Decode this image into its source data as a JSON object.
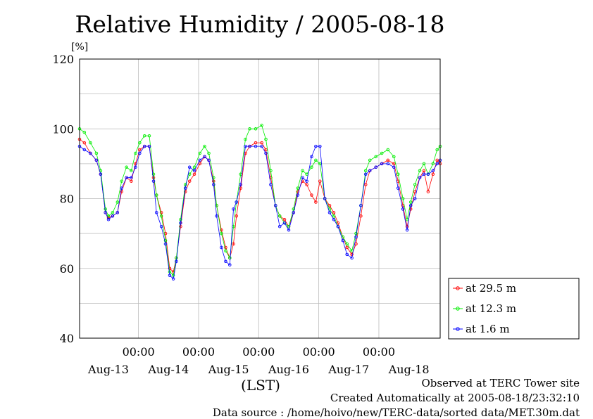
{
  "chart_data": {
    "type": "line",
    "title": "Relative Humidity / 2005-08-18",
    "ylabel": "[%]",
    "xlabel": "(LST)",
    "ylim": [
      40,
      120
    ],
    "yticks": [
      "40",
      "60",
      "80",
      "100",
      "120"
    ],
    "xlim": [
      -0.98,
      5.02
    ],
    "x_unit": "days relative to 2005-08-13 00:00 LST",
    "time_ticks": [
      {
        "x": 0,
        "label": "00:00"
      },
      {
        "x": 1,
        "label": "00:00"
      },
      {
        "x": 2,
        "label": "00:00"
      },
      {
        "x": 3,
        "label": "00:00"
      },
      {
        "x": 4,
        "label": "00:00"
      }
    ],
    "date_labels": [
      {
        "x": -0.5,
        "label": "Aug-13"
      },
      {
        "x": 0.5,
        "label": "Aug-14"
      },
      {
        "x": 1.5,
        "label": "Aug-15"
      },
      {
        "x": 2.5,
        "label": "Aug-16"
      },
      {
        "x": 3.5,
        "label": "Aug-17"
      },
      {
        "x": 4.5,
        "label": "Aug-18"
      }
    ],
    "grid": true,
    "legend_position": "right",
    "series": [
      {
        "name": "at 29.5 m",
        "color": "#ff0000",
        "points": [
          [
            -0.98,
            97
          ],
          [
            -0.9,
            96
          ],
          [
            -0.8,
            93
          ],
          [
            -0.7,
            91
          ],
          [
            -0.63,
            87
          ],
          [
            -0.55,
            76
          ],
          [
            -0.5,
            74.5
          ],
          [
            -0.43,
            75
          ],
          [
            -0.35,
            76
          ],
          [
            -0.28,
            82
          ],
          [
            -0.2,
            86
          ],
          [
            -0.12,
            85
          ],
          [
            -0.05,
            90
          ],
          [
            0.02,
            94
          ],
          [
            0.1,
            95
          ],
          [
            0.18,
            95
          ],
          [
            0.25,
            86
          ],
          [
            0.3,
            81
          ],
          [
            0.38,
            76
          ],
          [
            0.45,
            70
          ],
          [
            0.52,
            60
          ],
          [
            0.58,
            59
          ],
          [
            0.63,
            63
          ],
          [
            0.7,
            72
          ],
          [
            0.78,
            82
          ],
          [
            0.85,
            85
          ],
          [
            0.93,
            87
          ],
          [
            1.02,
            90
          ],
          [
            1.1,
            92
          ],
          [
            1.17,
            91
          ],
          [
            1.25,
            85
          ],
          [
            1.3,
            78
          ],
          [
            1.38,
            71
          ],
          [
            1.45,
            66
          ],
          [
            1.52,
            63
          ],
          [
            1.58,
            67
          ],
          [
            1.63,
            75
          ],
          [
            1.7,
            83
          ],
          [
            1.78,
            93
          ],
          [
            1.85,
            95
          ],
          [
            1.95,
            96
          ],
          [
            2.05,
            96
          ],
          [
            2.12,
            94
          ],
          [
            2.2,
            86
          ],
          [
            2.28,
            78
          ],
          [
            2.35,
            75
          ],
          [
            2.43,
            74
          ],
          [
            2.5,
            72
          ],
          [
            2.58,
            76
          ],
          [
            2.65,
            82
          ],
          [
            2.73,
            85
          ],
          [
            2.8,
            84
          ],
          [
            2.88,
            81
          ],
          [
            2.95,
            79
          ],
          [
            3.02,
            85
          ],
          [
            3.1,
            80
          ],
          [
            3.18,
            78
          ],
          [
            3.25,
            76
          ],
          [
            3.32,
            73
          ],
          [
            3.4,
            69
          ],
          [
            3.47,
            66
          ],
          [
            3.55,
            64
          ],
          [
            3.62,
            67
          ],
          [
            3.7,
            75
          ],
          [
            3.78,
            84
          ],
          [
            3.85,
            88
          ],
          [
            3.95,
            89
          ],
          [
            4.05,
            90
          ],
          [
            4.15,
            91
          ],
          [
            4.25,
            90
          ],
          [
            4.32,
            85
          ],
          [
            4.4,
            78
          ],
          [
            4.47,
            72
          ],
          [
            4.53,
            77
          ],
          [
            4.6,
            82
          ],
          [
            4.68,
            86
          ],
          [
            4.75,
            88
          ],
          [
            4.82,
            82
          ],
          [
            4.9,
            87
          ],
          [
            4.97,
            91
          ],
          [
            5.02,
            90
          ]
        ]
      },
      {
        "name": "at 12.3 m",
        "color": "#00ee00",
        "points": [
          [
            -0.98,
            100
          ],
          [
            -0.9,
            99
          ],
          [
            -0.8,
            96
          ],
          [
            -0.7,
            93
          ],
          [
            -0.63,
            88
          ],
          [
            -0.55,
            77
          ],
          [
            -0.5,
            75
          ],
          [
            -0.43,
            76
          ],
          [
            -0.35,
            79
          ],
          [
            -0.28,
            85
          ],
          [
            -0.2,
            89
          ],
          [
            -0.12,
            88
          ],
          [
            -0.05,
            93
          ],
          [
            0.02,
            96
          ],
          [
            0.1,
            98
          ],
          [
            0.18,
            98
          ],
          [
            0.25,
            87
          ],
          [
            0.3,
            81
          ],
          [
            0.38,
            75
          ],
          [
            0.45,
            68
          ],
          [
            0.52,
            59
          ],
          [
            0.58,
            58
          ],
          [
            0.63,
            63
          ],
          [
            0.7,
            74
          ],
          [
            0.78,
            84
          ],
          [
            0.85,
            87
          ],
          [
            0.93,
            89
          ],
          [
            1.02,
            93
          ],
          [
            1.1,
            95
          ],
          [
            1.17,
            93
          ],
          [
            1.25,
            86
          ],
          [
            1.3,
            78
          ],
          [
            1.38,
            70
          ],
          [
            1.45,
            65
          ],
          [
            1.52,
            63
          ],
          [
            1.58,
            72
          ],
          [
            1.63,
            79
          ],
          [
            1.7,
            87
          ],
          [
            1.78,
            97
          ],
          [
            1.85,
            100
          ],
          [
            1.95,
            100
          ],
          [
            2.05,
            101
          ],
          [
            2.12,
            97
          ],
          [
            2.2,
            88
          ],
          [
            2.28,
            78
          ],
          [
            2.35,
            75
          ],
          [
            2.43,
            73
          ],
          [
            2.5,
            72
          ],
          [
            2.58,
            77
          ],
          [
            2.65,
            83
          ],
          [
            2.73,
            88
          ],
          [
            2.8,
            87
          ],
          [
            2.88,
            89
          ],
          [
            2.95,
            91
          ],
          [
            3.02,
            90
          ],
          [
            3.1,
            80
          ],
          [
            3.18,
            77
          ],
          [
            3.25,
            75
          ],
          [
            3.32,
            72
          ],
          [
            3.4,
            69
          ],
          [
            3.47,
            67
          ],
          [
            3.55,
            65
          ],
          [
            3.62,
            70
          ],
          [
            3.7,
            78
          ],
          [
            3.78,
            88
          ],
          [
            3.85,
            91
          ],
          [
            3.95,
            92
          ],
          [
            4.05,
            93
          ],
          [
            4.15,
            94
          ],
          [
            4.25,
            92
          ],
          [
            4.32,
            87
          ],
          [
            4.4,
            80
          ],
          [
            4.47,
            74
          ],
          [
            4.53,
            79
          ],
          [
            4.6,
            84
          ],
          [
            4.68,
            88
          ],
          [
            4.75,
            90
          ],
          [
            4.82,
            87
          ],
          [
            4.9,
            90
          ],
          [
            4.97,
            94
          ],
          [
            5.02,
            95
          ]
        ]
      },
      {
        "name": "at 1.6 m",
        "color": "#0000ff",
        "points": [
          [
            -0.98,
            95
          ],
          [
            -0.9,
            94
          ],
          [
            -0.8,
            93
          ],
          [
            -0.7,
            91
          ],
          [
            -0.63,
            87
          ],
          [
            -0.55,
            76
          ],
          [
            -0.5,
            74
          ],
          [
            -0.43,
            75
          ],
          [
            -0.35,
            76
          ],
          [
            -0.28,
            83
          ],
          [
            -0.2,
            86
          ],
          [
            -0.12,
            86
          ],
          [
            -0.05,
            89
          ],
          [
            0.02,
            93
          ],
          [
            0.1,
            95
          ],
          [
            0.18,
            95
          ],
          [
            0.25,
            85
          ],
          [
            0.3,
            76
          ],
          [
            0.38,
            72
          ],
          [
            0.45,
            67
          ],
          [
            0.52,
            58
          ],
          [
            0.58,
            57
          ],
          [
            0.63,
            62
          ],
          [
            0.7,
            73
          ],
          [
            0.78,
            83
          ],
          [
            0.85,
            89
          ],
          [
            0.93,
            88
          ],
          [
            1.02,
            91
          ],
          [
            1.1,
            92
          ],
          [
            1.17,
            91
          ],
          [
            1.25,
            84
          ],
          [
            1.3,
            75
          ],
          [
            1.38,
            66
          ],
          [
            1.45,
            62
          ],
          [
            1.52,
            61
          ],
          [
            1.58,
            77
          ],
          [
            1.63,
            79
          ],
          [
            1.7,
            84
          ],
          [
            1.78,
            95
          ],
          [
            1.85,
            95
          ],
          [
            1.95,
            95
          ],
          [
            2.05,
            95
          ],
          [
            2.12,
            93
          ],
          [
            2.2,
            84
          ],
          [
            2.28,
            78
          ],
          [
            2.35,
            72
          ],
          [
            2.43,
            73
          ],
          [
            2.5,
            71
          ],
          [
            2.58,
            76
          ],
          [
            2.65,
            81
          ],
          [
            2.73,
            86
          ],
          [
            2.8,
            85
          ],
          [
            2.88,
            92
          ],
          [
            2.95,
            95
          ],
          [
            3.02,
            95
          ],
          [
            3.1,
            80
          ],
          [
            3.18,
            76
          ],
          [
            3.25,
            74
          ],
          [
            3.32,
            72
          ],
          [
            3.4,
            68
          ],
          [
            3.47,
            64
          ],
          [
            3.55,
            63
          ],
          [
            3.62,
            69
          ],
          [
            3.7,
            78
          ],
          [
            3.78,
            87
          ],
          [
            3.85,
            88
          ],
          [
            3.95,
            89
          ],
          [
            4.05,
            90
          ],
          [
            4.15,
            90
          ],
          [
            4.25,
            89
          ],
          [
            4.32,
            83
          ],
          [
            4.4,
            77
          ],
          [
            4.47,
            71
          ],
          [
            4.53,
            78
          ],
          [
            4.6,
            80
          ],
          [
            4.68,
            86
          ],
          [
            4.75,
            87
          ],
          [
            4.82,
            87
          ],
          [
            4.9,
            88
          ],
          [
            4.97,
            90
          ],
          [
            5.02,
            91
          ]
        ]
      }
    ]
  },
  "footer": {
    "line1": "Observed at TERC Tower site",
    "line2": "Created Automatically at 2005-08-18/23:32:10",
    "line3": "Data source : /home/hoivo/new/TERC-data/sorted  data/MET.30m.dat"
  }
}
